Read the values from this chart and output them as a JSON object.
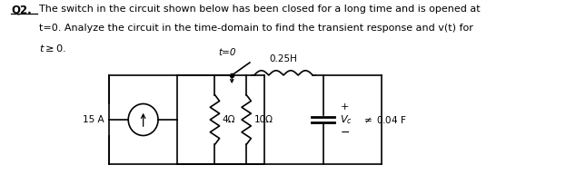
{
  "bg_color": "#ffffff",
  "circuit_color": "#000000",
  "title": "Q2.",
  "line1": "The switch in the circuit shown below has been closed for a long time and is opened at",
  "line2_pre": "t=0. Analyze the circuit in the time-domain to find the transient response and ",
  "line2_vt": "v(t)",
  "line2_post": " for",
  "line3": "t ≥ 0.",
  "cs_label": "15 A",
  "r1_label": "4Ω",
  "r2_label": "10Ω",
  "ind_label": "0.25H",
  "cap_label": "0.04 F",
  "vc_label": "V_c",
  "sw_label": "t=0",
  "plus": "+",
  "minus": "−"
}
